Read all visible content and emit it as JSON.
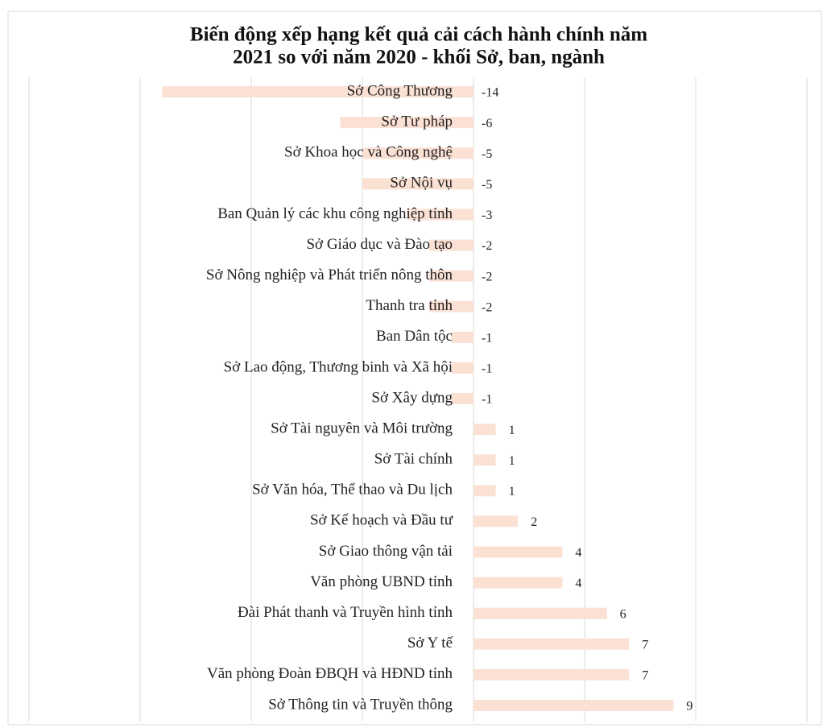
{
  "chart_data": {
    "type": "barh",
    "title": [
      "Biến động xếp hạng kết quả cải cách hành chính năm",
      "2021 so với năm 2020 - khối Sở, ban, ngành"
    ],
    "categories": [
      "Sở Công Thương",
      "Sở Tư pháp",
      "Sở Khoa học và Công nghệ",
      "Sở Nội vụ",
      "Ban Quản lý các khu công nghiệp tỉnh",
      "Sở Giáo dục và Đào tạo",
      "Sở Nông nghiệp và Phát triển nông thôn",
      "Thanh tra tỉnh",
      "Ban Dân tộc",
      "Sở Lao động, Thương binh và Xã hội",
      "Sở Xây dựng",
      "Sở Tài nguyên và Môi trường",
      "Sở Tài chính",
      "Sở Văn hóa, Thể thao và Du lịch",
      "Sở Kế hoạch và Đầu tư",
      "Sở Giao thông vận tải",
      "Văn phòng UBND tỉnh",
      "Đài Phát thanh và Truyền hình tỉnh",
      "Sở Y tế",
      "Văn phòng Đoàn ĐBQH và HĐND tỉnh",
      "Sở Thông tin và Truyền thông"
    ],
    "values": [
      -14,
      -6,
      -5,
      -5,
      -3,
      -2,
      -2,
      -2,
      -1,
      -1,
      -1,
      1,
      1,
      1,
      2,
      4,
      4,
      6,
      7,
      7,
      9
    ],
    "color": "#fbe1d4",
    "xlim": [
      -20,
      15
    ],
    "xticks": [
      -20,
      -15,
      -10,
      -5,
      0,
      5,
      10,
      15
    ],
    "grid": true
  }
}
